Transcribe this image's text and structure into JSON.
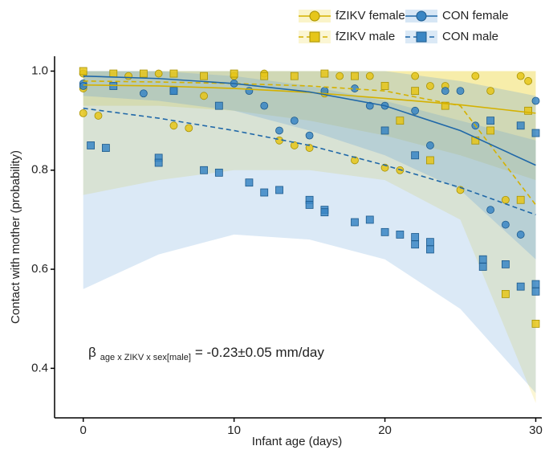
{
  "chart_data": {
    "type": "scatter",
    "x_label": "Infant age (days)",
    "y_label": "Contact with mother (probability)",
    "xlim": [
      -1.9,
      30.4
    ],
    "ylim": [
      0.3,
      1.03
    ],
    "xticks": [
      0,
      10,
      20,
      30
    ],
    "yticks": [
      0.4,
      0.6,
      0.8,
      {
        "value": 1,
        "label": "1.0"
      }
    ],
    "annotation": {
      "symbol": "β",
      "subscript": "age x ZIKV x sex[male]",
      "text": "= -0.23±0.05 mm/day"
    },
    "series": [
      {
        "name": "fZIKV female",
        "color": "#e6c619",
        "edge": "#a89200",
        "marker": "circle",
        "line_style": "solid",
        "x": [
          0,
          0,
          0,
          1,
          3,
          5,
          6,
          7,
          8,
          10,
          12,
          13,
          14,
          15,
          16,
          17,
          18,
          19,
          20,
          21,
          22,
          23,
          24,
          25,
          26,
          27,
          28,
          29,
          29.5
        ],
        "values": [
          0.995,
          0.965,
          0.915,
          0.91,
          0.99,
          0.995,
          0.89,
          0.885,
          0.95,
          0.99,
          0.995,
          0.86,
          0.85,
          0.845,
          0.955,
          0.99,
          0.82,
          0.99,
          0.805,
          0.8,
          0.99,
          0.97,
          0.97,
          0.76,
          0.99,
          0.96,
          0.74,
          0.99,
          0.98
        ],
        "fit_x": [
          0,
          5,
          10,
          15,
          20,
          25,
          30
        ],
        "fit": [
          0.972,
          0.97,
          0.965,
          0.957,
          0.945,
          0.932,
          0.915
        ],
        "fit_upper": [
          1,
          1,
          1,
          1,
          1,
          1,
          1
        ],
        "fit_lower": [
          0.93,
          0.93,
          0.92,
          0.9,
          0.87,
          0.83,
          0.78
        ]
      },
      {
        "name": "fZIKV male",
        "color": "#e6c619",
        "edge": "#a89200",
        "marker": "square",
        "line_style": "dashed",
        "x": [
          0,
          2,
          4,
          6,
          8,
          10,
          12,
          14,
          16,
          18,
          20,
          21,
          22,
          23,
          24,
          26,
          27,
          28,
          29,
          29.5,
          30
        ],
        "values": [
          1,
          0.995,
          0.995,
          0.995,
          0.99,
          0.995,
          0.99,
          0.99,
          0.995,
          0.99,
          0.97,
          0.9,
          0.96,
          0.82,
          0.93,
          0.86,
          0.88,
          0.55,
          0.74,
          0.92,
          0.49
        ],
        "fit_x": [
          0,
          5,
          10,
          15,
          20,
          25,
          30
        ],
        "fit": [
          0.98,
          0.978,
          0.975,
          0.97,
          0.96,
          0.93,
          0.73
        ],
        "fit_upper": [
          1,
          1,
          1,
          1,
          1,
          1,
          1
        ],
        "fit_lower": [
          0.75,
          0.78,
          0.8,
          0.8,
          0.78,
          0.7,
          0.33
        ]
      },
      {
        "name": "CON female",
        "color": "#3a86c4",
        "edge": "#1d5a8c",
        "marker": "circle",
        "line_style": "solid",
        "x": [
          0,
          0,
          4,
          6,
          10,
          11,
          12,
          13,
          14,
          15,
          16,
          18,
          19,
          20,
          22,
          23,
          24,
          25,
          26,
          27,
          28,
          29,
          30
        ],
        "values": [
          0.975,
          0.97,
          0.955,
          0.96,
          0.975,
          0.96,
          0.93,
          0.88,
          0.9,
          0.87,
          0.96,
          0.965,
          0.93,
          0.93,
          0.92,
          0.85,
          0.96,
          0.96,
          0.89,
          0.72,
          0.69,
          0.67,
          0.94
        ],
        "fit_x": [
          0,
          5,
          10,
          15,
          20,
          25,
          30
        ],
        "fit": [
          0.99,
          0.985,
          0.975,
          0.958,
          0.93,
          0.88,
          0.81
        ],
        "fit_upper": [
          1,
          1,
          1,
          1,
          1,
          0.98,
          0.95
        ],
        "fit_lower": [
          0.95,
          0.94,
          0.92,
          0.88,
          0.83,
          0.76,
          0.62
        ]
      },
      {
        "name": "CON male",
        "color": "#3a86c4",
        "edge": "#1d5a8c",
        "marker": "square",
        "line_style": "dashed",
        "x": [
          0.5,
          1.5,
          2,
          5,
          5,
          6,
          8,
          9,
          9,
          11,
          12,
          13,
          15,
          15,
          16,
          16,
          18,
          19,
          20,
          20,
          21,
          22,
          22,
          22,
          23,
          23,
          26.5,
          26.5,
          27,
          28,
          29,
          29,
          30,
          30,
          30
        ],
        "values": [
          0.85,
          0.845,
          0.97,
          0.825,
          0.815,
          0.96,
          0.8,
          0.795,
          0.93,
          0.775,
          0.755,
          0.76,
          0.74,
          0.73,
          0.72,
          0.715,
          0.695,
          0.7,
          0.675,
          0.88,
          0.67,
          0.665,
          0.65,
          0.83,
          0.655,
          0.64,
          0.62,
          0.605,
          0.9,
          0.61,
          0.565,
          0.89,
          0.57,
          0.555,
          0.875
        ],
        "fit_x": [
          0,
          5,
          10,
          15,
          20,
          25,
          30
        ],
        "fit": [
          0.925,
          0.905,
          0.88,
          0.85,
          0.81,
          0.765,
          0.71
        ],
        "fit_upper": [
          1,
          1,
          0.99,
          0.97,
          0.94,
          0.9,
          0.86
        ],
        "fit_lower": [
          0.56,
          0.63,
          0.67,
          0.66,
          0.62,
          0.52,
          0.35
        ]
      }
    ]
  }
}
